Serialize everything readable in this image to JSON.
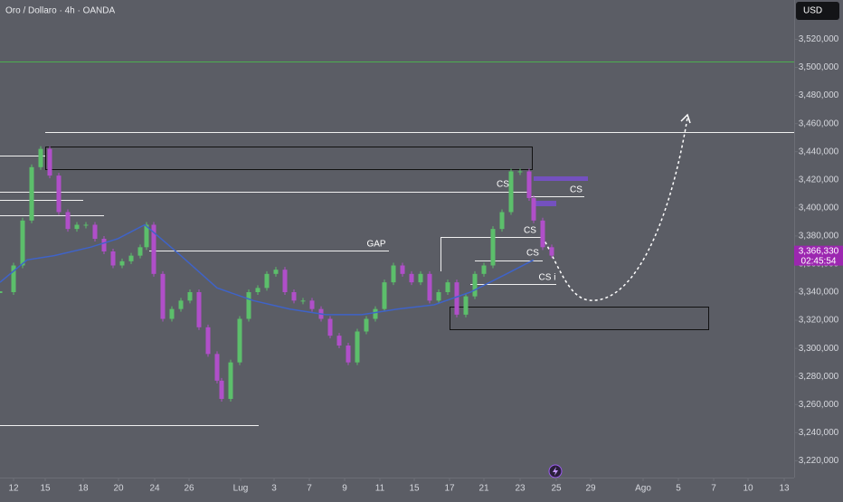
{
  "chart_data": {
    "type": "candlestick",
    "title": "Oro / Dollaro · 4h · OANDA",
    "currency": "USD",
    "last_price_label": "3,366,330",
    "countdown": "02:45:54",
    "xlim": [
      0,
      878
    ],
    "xticks": [
      {
        "value": 15,
        "label": "12"
      },
      {
        "value": 50,
        "label": "15"
      },
      {
        "value": 92,
        "label": "18"
      },
      {
        "value": 131,
        "label": "20"
      },
      {
        "value": 171,
        "label": "24"
      },
      {
        "value": 209,
        "label": "26"
      },
      {
        "value": 266,
        "label": "Lug"
      },
      {
        "value": 303,
        "label": "3"
      },
      {
        "value": 342,
        "label": "7"
      },
      {
        "value": 381,
        "label": "9"
      },
      {
        "value": 420,
        "label": "11"
      },
      {
        "value": 458,
        "label": "15"
      },
      {
        "value": 497,
        "label": "17"
      },
      {
        "value": 535,
        "label": "21"
      },
      {
        "value": 575,
        "label": "23"
      },
      {
        "value": 615,
        "label": "25"
      },
      {
        "value": 653,
        "label": "29"
      },
      {
        "value": 711,
        "label": "Ago"
      },
      {
        "value": 750,
        "label": "5"
      },
      {
        "value": 789,
        "label": "7"
      },
      {
        "value": 827,
        "label": "10"
      },
      {
        "value": 867,
        "label": "13"
      }
    ],
    "ylim": [
      3208000,
      3548000
    ],
    "yticks": [
      {
        "value": 3520000,
        "label": "3,520,000"
      },
      {
        "value": 3500000,
        "label": "3,500,000"
      },
      {
        "value": 3480000,
        "label": "3,480,000"
      },
      {
        "value": 3460000,
        "label": "3,460,000"
      },
      {
        "value": 3440000,
        "label": "3,440,000"
      },
      {
        "value": 3420000,
        "label": "3,420,000"
      },
      {
        "value": 3400000,
        "label": "3,400,000"
      },
      {
        "value": 3380000,
        "label": "3,380,000"
      },
      {
        "value": 3360000,
        "label": "3,360,000"
      },
      {
        "value": 3340000,
        "label": "3,340,000"
      },
      {
        "value": 3320000,
        "label": "3,320,000"
      },
      {
        "value": 3300000,
        "label": "3,300,000"
      },
      {
        "value": 3280000,
        "label": "3,280,000"
      },
      {
        "value": 3260000,
        "label": "3,260,000"
      },
      {
        "value": 3240000,
        "label": "3,240,000"
      },
      {
        "value": 3220000,
        "label": "3,220,000"
      }
    ],
    "series": [
      {
        "kind": "candles",
        "color_up": "#5cbf6b",
        "color_down": "#b04fc9",
        "x": [
          0,
          15,
          25,
          35,
          45,
          55,
          65,
          75,
          85,
          95,
          105,
          115,
          125,
          135,
          145,
          155,
          162,
          170,
          180,
          190,
          200,
          210,
          220,
          230,
          240,
          245,
          255,
          265,
          275,
          285,
          295,
          305,
          315,
          325,
          335,
          345,
          355,
          365,
          375,
          385,
          395,
          405,
          415,
          425,
          435,
          445,
          455,
          465,
          475,
          485,
          495,
          505,
          515,
          525,
          535,
          545,
          555,
          565,
          575,
          585,
          590,
          600,
          610
        ],
        "values": [
          3340000,
          3359000,
          3391000,
          3429000,
          3442000,
          3423000,
          3397000,
          3385000,
          3388000,
          3388000,
          3378000,
          3369000,
          3359000,
          3362000,
          3366000,
          3372000,
          3388000,
          3353000,
          3321000,
          3328000,
          3334000,
          3340000,
          3315000,
          3296000,
          3277000,
          3264000,
          3290000,
          3321000,
          3340000,
          3343000,
          3353000,
          3356000,
          3340000,
          3334000,
          3334000,
          3328000,
          3321000,
          3309000,
          3302000,
          3290000,
          3312000,
          3321000,
          3328000,
          3347000,
          3359000,
          3353000,
          3347000,
          3353000,
          3334000,
          3340000,
          3347000,
          3324000,
          3337000,
          3353000,
          3359000,
          3385000,
          3397000,
          3426000,
          3426000,
          3407000,
          3391000,
          3372000,
          3366000
        ]
      },
      {
        "kind": "line",
        "color": "#3f63c8",
        "x": [
          0,
          30,
          60,
          100,
          130,
          160,
          200,
          240,
          280,
          320,
          360,
          400,
          440,
          480,
          520,
          560,
          590
        ],
        "values": [
          3347000,
          3363000,
          3366000,
          3372000,
          3378000,
          3388000,
          3366000,
          3343000,
          3334000,
          3328000,
          3324000,
          3324000,
          3328000,
          3331000,
          3340000,
          3353000,
          3363000
        ]
      }
    ],
    "annotations": [
      "GAP",
      "CS",
      "CS",
      "CS",
      "CS",
      "CS i"
    ]
  }
}
